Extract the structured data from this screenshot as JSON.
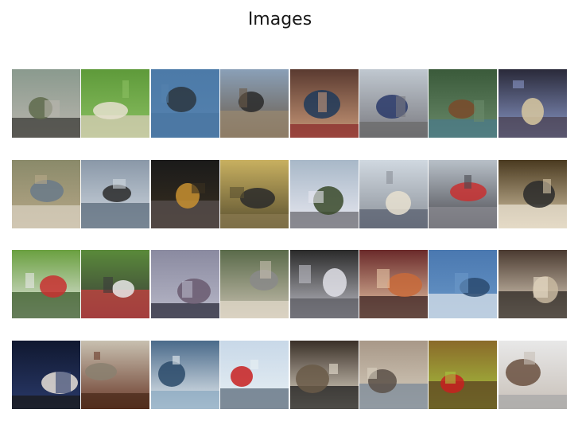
{
  "title": "Images",
  "grid": {
    "rows": 4,
    "cols": 8,
    "tiles": [
      {
        "icon": "crane-bird-photo",
        "colors": [
          "#8a9a8e",
          "#b9b5ad",
          "#5f6b4c",
          "#3a3a36"
        ]
      },
      {
        "icon": "lamb-photo",
        "colors": [
          "#5e9a3a",
          "#8cc062",
          "#e6e0cf",
          "#d8cdb8"
        ]
      },
      {
        "icon": "jet-in-sky-photo",
        "colors": [
          "#4c7aa8",
          "#5582ae",
          "#2b3640",
          "#4a76a2"
        ]
      },
      {
        "icon": "freight-train-photo",
        "colors": [
          "#8aa0b8",
          "#6a5a48",
          "#2a2a2a",
          "#9a8870"
        ]
      },
      {
        "icon": "woman-with-wine-photo",
        "colors": [
          "#5a3a30",
          "#c89878",
          "#1e3a5a",
          "#8a2a2a"
        ]
      },
      {
        "icon": "motorcycles-photo",
        "colors": [
          "#c0c8d0",
          "#7a7a80",
          "#2a3a6a",
          "#6a6a6a"
        ]
      },
      {
        "icon": "horse-rider-photo",
        "colors": [
          "#3a5a3a",
          "#6a8a6a",
          "#7a4a2a",
          "#4a7a8a"
        ]
      },
      {
        "icon": "bedroom-lamp-photo",
        "colors": [
          "#2a2a3a",
          "#8a98c8",
          "#d8c8a0",
          "#4a4050"
        ]
      },
      {
        "icon": "cat-by-trash-photo",
        "colors": [
          "#8a8a6a",
          "#b8a888",
          "#6a7a8a",
          "#d8d0c0"
        ]
      },
      {
        "icon": "car-dashboard-sky-photo",
        "colors": [
          "#8a98a8",
          "#d0d8e0",
          "#2a2a2a",
          "#5a6a7a"
        ]
      },
      {
        "icon": "night-motorbike-photo",
        "colors": [
          "#1a1a1a",
          "#3a3020",
          "#c89030",
          "#5a5050"
        ]
      },
      {
        "icon": "bicycle-in-room-photo",
        "colors": [
          "#c8b060",
          "#5a5030",
          "#2a2a2a",
          "#8a7a50"
        ]
      },
      {
        "icon": "camper-van-photo",
        "colors": [
          "#a8b8c8",
          "#e8e8f0",
          "#3a4a2a",
          "#6a6a70"
        ]
      },
      {
        "icon": "train-platform-photo",
        "colors": [
          "#d0d8e0",
          "#8a9098",
          "#e8e0d0",
          "#5a6070"
        ]
      },
      {
        "icon": "street-sign-photo",
        "colors": [
          "#b8c0c8",
          "#4a4a50",
          "#c83030",
          "#8a8a90"
        ]
      },
      {
        "icon": "dinner-table-photo",
        "colors": [
          "#4a3a20",
          "#d8c8a8",
          "#2a2a2a",
          "#e8e0d0"
        ]
      },
      {
        "icon": "show-jumping-photo",
        "colors": [
          "#6aa040",
          "#e8e8e8",
          "#c83030",
          "#3a5a2a"
        ]
      },
      {
        "icon": "horse-jump-field-photo",
        "colors": [
          "#5a8a3a",
          "#3a3a3a",
          "#e8e8e8",
          "#c84040"
        ]
      },
      {
        "icon": "harbor-boat-photo",
        "colors": [
          "#8a8aa0",
          "#b8b8c8",
          "#6a5a70",
          "#2a2a3a"
        ]
      },
      {
        "icon": "sheep-pair-photo",
        "colors": [
          "#5a6a4a",
          "#c8c0b0",
          "#8a8a8a",
          "#e0d8c8"
        ]
      },
      {
        "icon": "silver-sedan-photo",
        "colors": [
          "#2a2a2a",
          "#c0c0c8",
          "#e0e0e8",
          "#5a5a60"
        ]
      },
      {
        "icon": "mother-child-photo",
        "colors": [
          "#6a2a2a",
          "#e8c8a8",
          "#c86a3a",
          "#3a2020"
        ]
      },
      {
        "icon": "skyscraper-plane-photo",
        "colors": [
          "#4a78b0",
          "#6a98c8",
          "#2a4a70",
          "#d8e0e8"
        ]
      },
      {
        "icon": "cat-figurines-photo",
        "colors": [
          "#4a3a30",
          "#e8dcc8",
          "#c8b8a0",
          "#2a2420"
        ]
      },
      {
        "icon": "man-on-stage-photo",
        "colors": [
          "#101830",
          "#2a3a6a",
          "#e8e0d8",
          "#1a1a1a"
        ]
      },
      {
        "icon": "leather-sofa-photo",
        "colors": [
          "#c8c0b0",
          "#6a3a2a",
          "#8a8070",
          "#4a2a1a"
        ]
      },
      {
        "icon": "boat-wake-photo",
        "colors": [
          "#4a6a8a",
          "#e8eef2",
          "#2a4a6a",
          "#8aa8c0"
        ]
      },
      {
        "icon": "airplane-tail-photo",
        "colors": [
          "#c8d8e8",
          "#e8f0f4",
          "#c82020",
          "#5a6a7a"
        ]
      },
      {
        "icon": "living-room-photo",
        "colors": [
          "#3a3028",
          "#e8e0d0",
          "#6a5a48",
          "#1a1a1a"
        ]
      },
      {
        "icon": "old-street-photo",
        "colors": [
          "#a89888",
          "#d8d0c0",
          "#5a5048",
          "#7a8898"
        ]
      },
      {
        "icon": "green-drink-photo",
        "colors": [
          "#8a6a2a",
          "#a8c840",
          "#c82020",
          "#5a4020"
        ]
      },
      {
        "icon": "banquet-table-photo",
        "colors": [
          "#e8e8e8",
          "#c8c0b8",
          "#6a5040",
          "#a8a8a8"
        ]
      }
    ]
  }
}
